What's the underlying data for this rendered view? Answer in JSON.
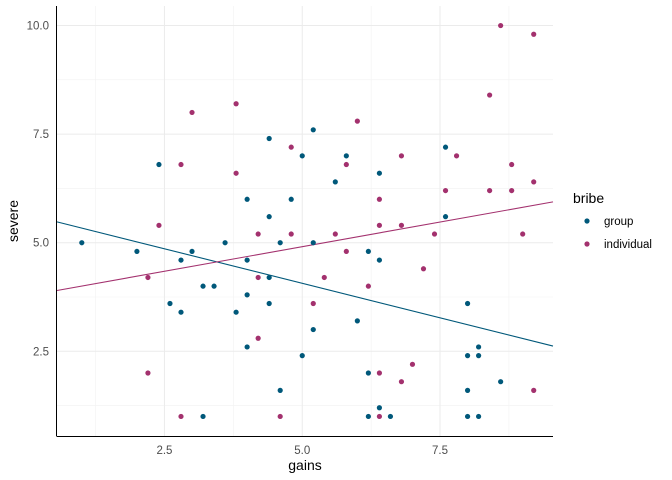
{
  "chart_data": {
    "type": "scatter",
    "xlabel": "gains",
    "ylabel": "severe",
    "xlim": [
      0.55,
      9.55
    ],
    "ylim": [
      0.55,
      10.45
    ],
    "x_ticks": [
      2.5,
      5.0,
      7.5
    ],
    "x_tick_labels": [
      "2.5",
      "5.0",
      "7.5"
    ],
    "y_ticks": [
      2.5,
      5.0,
      7.5,
      10.0
    ],
    "y_tick_labels": [
      "2.5",
      "5.0",
      "7.5",
      "10.0"
    ],
    "grid": true,
    "legend": {
      "title": "bribe",
      "position": "right",
      "entries": [
        "group",
        "individual"
      ]
    },
    "series": [
      {
        "name": "group",
        "color": "#00587a",
        "points": [
          [
            1.0,
            5.0
          ],
          [
            2.0,
            4.8
          ],
          [
            2.4,
            6.8
          ],
          [
            2.6,
            3.6
          ],
          [
            2.8,
            4.6
          ],
          [
            2.8,
            3.4
          ],
          [
            3.0,
            4.8
          ],
          [
            3.2,
            4.0
          ],
          [
            3.2,
            1.0
          ],
          [
            3.4,
            4.0
          ],
          [
            3.6,
            5.0
          ],
          [
            3.8,
            3.4
          ],
          [
            4.0,
            6.0
          ],
          [
            4.0,
            4.6
          ],
          [
            4.0,
            3.8
          ],
          [
            4.0,
            2.6
          ],
          [
            4.4,
            7.4
          ],
          [
            4.4,
            5.6
          ],
          [
            4.4,
            4.2
          ],
          [
            4.4,
            3.6
          ],
          [
            4.6,
            5.0
          ],
          [
            4.6,
            1.6
          ],
          [
            4.8,
            6.0
          ],
          [
            5.0,
            7.0
          ],
          [
            5.0,
            2.4
          ],
          [
            5.2,
            7.6
          ],
          [
            5.2,
            5.0
          ],
          [
            5.2,
            3.0
          ],
          [
            5.6,
            6.4
          ],
          [
            5.8,
            7.0
          ],
          [
            6.0,
            3.2
          ],
          [
            6.2,
            4.8
          ],
          [
            6.2,
            2.0
          ],
          [
            6.2,
            1.0
          ],
          [
            6.4,
            6.6
          ],
          [
            6.4,
            4.6
          ],
          [
            6.4,
            1.2
          ],
          [
            6.6,
            1.0
          ],
          [
            7.6,
            7.2
          ],
          [
            7.6,
            5.6
          ],
          [
            8.0,
            3.6
          ],
          [
            8.0,
            2.4
          ],
          [
            8.0,
            1.6
          ],
          [
            8.0,
            1.0
          ],
          [
            8.2,
            2.6
          ],
          [
            8.2,
            2.4
          ],
          [
            8.2,
            1.0
          ],
          [
            8.6,
            1.8
          ]
        ],
        "fit_line": {
          "x": [
            0.55,
            9.55
          ],
          "y": [
            5.48,
            2.62
          ]
        }
      },
      {
        "name": "individual",
        "color": "#a3316e",
        "points": [
          [
            2.2,
            4.2
          ],
          [
            2.2,
            2.0
          ],
          [
            2.4,
            5.4
          ],
          [
            2.8,
            6.8
          ],
          [
            2.8,
            1.0
          ],
          [
            3.0,
            8.0
          ],
          [
            3.8,
            8.2
          ],
          [
            3.8,
            6.6
          ],
          [
            4.2,
            5.2
          ],
          [
            4.2,
            4.2
          ],
          [
            4.2,
            2.8
          ],
          [
            4.6,
            1.0
          ],
          [
            4.8,
            7.2
          ],
          [
            4.8,
            5.2
          ],
          [
            5.2,
            3.6
          ],
          [
            5.4,
            4.2
          ],
          [
            5.6,
            5.2
          ],
          [
            5.8,
            6.8
          ],
          [
            5.8,
            4.8
          ],
          [
            6.0,
            7.8
          ],
          [
            6.2,
            4.0
          ],
          [
            6.4,
            6.0
          ],
          [
            6.4,
            5.4
          ],
          [
            6.4,
            2.0
          ],
          [
            6.4,
            1.0
          ],
          [
            6.8,
            7.0
          ],
          [
            6.8,
            5.4
          ],
          [
            6.8,
            1.8
          ],
          [
            7.0,
            2.2
          ],
          [
            7.2,
            4.4
          ],
          [
            7.4,
            5.2
          ],
          [
            7.6,
            6.2
          ],
          [
            7.8,
            7.0
          ],
          [
            8.4,
            8.4
          ],
          [
            8.4,
            6.2
          ],
          [
            8.6,
            10.0
          ],
          [
            8.8,
            6.8
          ],
          [
            8.8,
            6.2
          ],
          [
            9.0,
            5.2
          ],
          [
            9.2,
            9.8
          ],
          [
            9.2,
            6.4
          ],
          [
            9.2,
            1.6
          ]
        ],
        "fit_line": {
          "x": [
            0.55,
            9.55
          ],
          "y": [
            3.9,
            5.94
          ]
        }
      }
    ]
  }
}
